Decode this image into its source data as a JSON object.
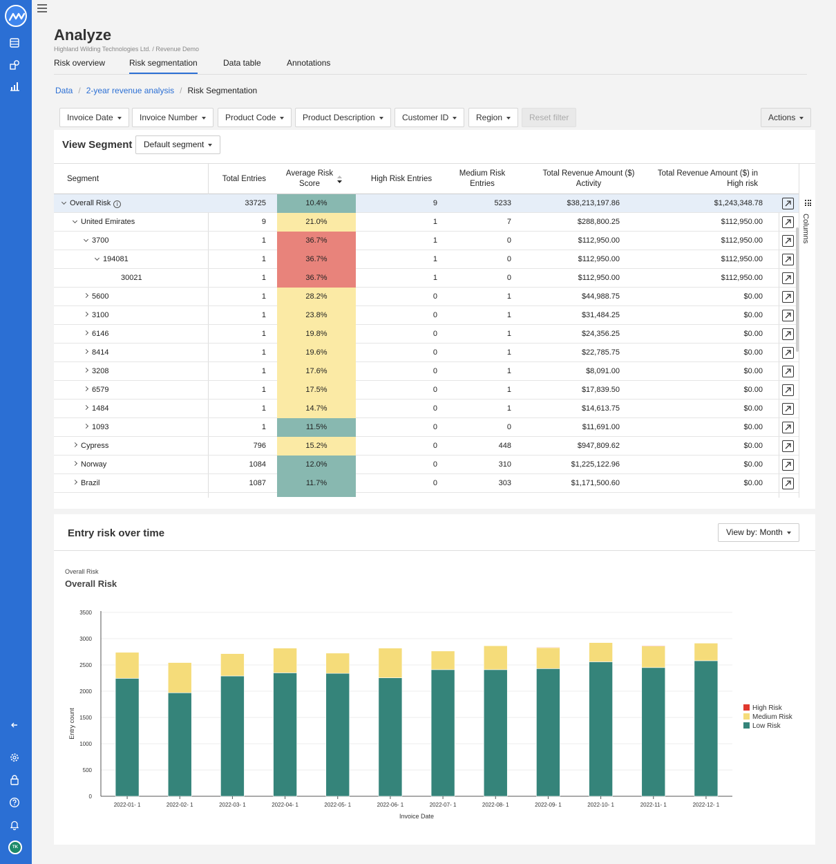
{
  "app": {
    "page_title": "Analyze",
    "subtitle": "Highland Wilding Technologies Ltd. / Revenue Demo",
    "avatar_initials": "TK"
  },
  "tabs": [
    "Risk overview",
    "Risk segmentation",
    "Data table",
    "Annotations"
  ],
  "active_tab": "Risk segmentation",
  "breadcrumb": {
    "data": "Data",
    "analysis": "2-year revenue analysis",
    "current": "Risk Segmentation"
  },
  "filters": [
    "Invoice Date",
    "Invoice Number",
    "Product Code",
    "Product Description",
    "Customer ID",
    "Region"
  ],
  "reset_filter": "Reset filter",
  "actions": "Actions",
  "segment": {
    "title": "View Segment",
    "dropdown": "Default segment",
    "columns_label": "Columns",
    "headers": {
      "segment": "Segment",
      "total_entries": "Total Entries",
      "avg_score": "Average Risk Score",
      "high_risk": "High Risk Entries",
      "medium_risk": "Medium Risk Entries",
      "revenue_activity": "Total Revenue Amount ($) Activity",
      "revenue_high": "Total Revenue Amount ($) in High risk"
    },
    "rows": [
      {
        "name": "Overall Risk",
        "level": 0,
        "toggle": "down",
        "info": true,
        "total": "33725",
        "score": "10.4%",
        "risk": "low",
        "high": "9",
        "medium": "5233",
        "activity": "$38,213,197.86",
        "in_high": "$1,243,348.78"
      },
      {
        "name": "United Emirates",
        "level": 1,
        "toggle": "down",
        "total": "9",
        "score": "21.0%",
        "risk": "medium",
        "high": "1",
        "medium": "7",
        "activity": "$288,800.25",
        "in_high": "$112,950.00"
      },
      {
        "name": "3700",
        "level": 2,
        "toggle": "down",
        "total": "1",
        "score": "36.7%",
        "risk": "high",
        "high": "1",
        "medium": "0",
        "activity": "$112,950.00",
        "in_high": "$112,950.00"
      },
      {
        "name": "194081",
        "level": 3,
        "toggle": "down",
        "total": "1",
        "score": "36.7%",
        "risk": "high",
        "high": "1",
        "medium": "0",
        "activity": "$112,950.00",
        "in_high": "$112,950.00"
      },
      {
        "name": "30021",
        "level": 4,
        "toggle": "none",
        "total": "1",
        "score": "36.7%",
        "risk": "high",
        "high": "1",
        "medium": "0",
        "activity": "$112,950.00",
        "in_high": "$112,950.00"
      },
      {
        "name": "5600",
        "level": 2,
        "toggle": "right",
        "total": "1",
        "score": "28.2%",
        "risk": "medium",
        "high": "0",
        "medium": "1",
        "activity": "$44,988.75",
        "in_high": "$0.00"
      },
      {
        "name": "3100",
        "level": 2,
        "toggle": "right",
        "total": "1",
        "score": "23.8%",
        "risk": "medium",
        "high": "0",
        "medium": "1",
        "activity": "$31,484.25",
        "in_high": "$0.00"
      },
      {
        "name": "6146",
        "level": 2,
        "toggle": "right",
        "total": "1",
        "score": "19.8%",
        "risk": "medium",
        "high": "0",
        "medium": "1",
        "activity": "$24,356.25",
        "in_high": "$0.00"
      },
      {
        "name": "8414",
        "level": 2,
        "toggle": "right",
        "total": "1",
        "score": "19.6%",
        "risk": "medium",
        "high": "0",
        "medium": "1",
        "activity": "$22,785.75",
        "in_high": "$0.00"
      },
      {
        "name": "3208",
        "level": 2,
        "toggle": "right",
        "total": "1",
        "score": "17.6%",
        "risk": "medium",
        "high": "0",
        "medium": "1",
        "activity": "$8,091.00",
        "in_high": "$0.00"
      },
      {
        "name": "6579",
        "level": 2,
        "toggle": "right",
        "total": "1",
        "score": "17.5%",
        "risk": "medium",
        "high": "0",
        "medium": "1",
        "activity": "$17,839.50",
        "in_high": "$0.00"
      },
      {
        "name": "1484",
        "level": 2,
        "toggle": "right",
        "total": "1",
        "score": "14.7%",
        "risk": "medium",
        "high": "0",
        "medium": "1",
        "activity": "$14,613.75",
        "in_high": "$0.00"
      },
      {
        "name": "1093",
        "level": 2,
        "toggle": "right",
        "total": "1",
        "score": "11.5%",
        "risk": "low",
        "high": "0",
        "medium": "0",
        "activity": "$11,691.00",
        "in_high": "$0.00"
      },
      {
        "name": "Cypress",
        "level": 1,
        "toggle": "right",
        "total": "796",
        "score": "15.2%",
        "risk": "medium",
        "high": "0",
        "medium": "448",
        "activity": "$947,809.62",
        "in_high": "$0.00"
      },
      {
        "name": "Norway",
        "level": 1,
        "toggle": "right",
        "total": "1084",
        "score": "12.0%",
        "risk": "low",
        "high": "0",
        "medium": "310",
        "activity": "$1,225,122.96",
        "in_high": "$0.00"
      },
      {
        "name": "Brazil",
        "level": 1,
        "toggle": "right",
        "total": "1087",
        "score": "11.7%",
        "risk": "low",
        "high": "0",
        "medium": "303",
        "activity": "$1,171,500.60",
        "in_high": "$0.00"
      }
    ]
  },
  "risk_colors": {
    "high": "#e8837b",
    "medium": "#fbeaa5",
    "low": "#88b8b0"
  },
  "chart_panel": {
    "title": "Entry risk over time",
    "view_by": "View by: Month",
    "mini_label": "Overall Risk",
    "subtitle": "Overall Risk"
  },
  "chart_data": {
    "type": "bar",
    "stacked": true,
    "categories": [
      "2022-01- 1",
      "2022-02- 1",
      "2022-03- 1",
      "2022-04- 1",
      "2022-05- 1",
      "2022-06- 1",
      "2022-07- 1",
      "2022-08- 1",
      "2022-09- 1",
      "2022-10- 1",
      "2022-11- 1",
      "2022-12- 1"
    ],
    "series": [
      {
        "name": "Low Risk",
        "color": "#35847a",
        "values": [
          2245,
          1970,
          2290,
          2350,
          2340,
          2255,
          2410,
          2410,
          2430,
          2560,
          2450,
          2580
        ]
      },
      {
        "name": "Medium Risk",
        "color": "#f5dc7a",
        "values": [
          495,
          575,
          425,
          470,
          385,
          565,
          355,
          455,
          400,
          365,
          410,
          335
        ]
      },
      {
        "name": "High Risk",
        "color": "#e0382e",
        "values": [
          0,
          0,
          0,
          0,
          0,
          0,
          0,
          0,
          10,
          0,
          10,
          0
        ]
      }
    ],
    "xlabel": "Invoice Date",
    "ylabel": "Entry count",
    "ylim": [
      0,
      3500
    ],
    "yticks": [
      0,
      500,
      1000,
      1500,
      2000,
      2500,
      3000,
      3500
    ],
    "legend_order": [
      "High Risk",
      "Medium Risk",
      "Low Risk"
    ],
    "legend_position": "right"
  }
}
